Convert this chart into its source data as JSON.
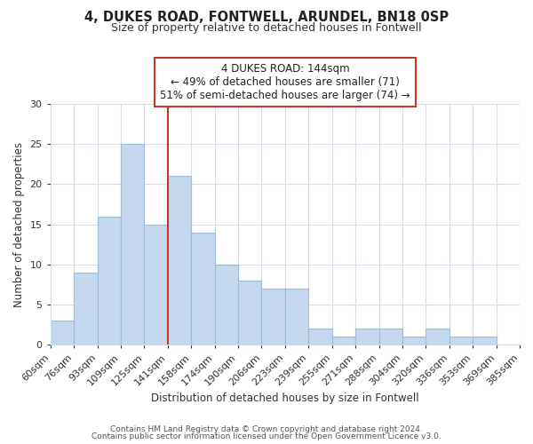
{
  "title": "4, DUKES ROAD, FONTWELL, ARUNDEL, BN18 0SP",
  "subtitle": "Size of property relative to detached houses in Fontwell",
  "xlabel": "Distribution of detached houses by size in Fontwell",
  "ylabel": "Number of detached properties",
  "bar_labels": [
    "60sqm",
    "76sqm",
    "93sqm",
    "109sqm",
    "125sqm",
    "141sqm",
    "158sqm",
    "174sqm",
    "190sqm",
    "206sqm",
    "223sqm",
    "239sqm",
    "255sqm",
    "271sqm",
    "288sqm",
    "304sqm",
    "320sqm",
    "336sqm",
    "353sqm",
    "369sqm",
    "385sqm"
  ],
  "bar_values": [
    3,
    9,
    16,
    25,
    15,
    21,
    14,
    10,
    8,
    7,
    7,
    2,
    1,
    2,
    2,
    1,
    2,
    1,
    1,
    0
  ],
  "bar_color": "#c5d8ed",
  "bar_edge_color": "#a0bcd8",
  "vline_x": 5,
  "vline_color": "#c0392b",
  "annotation_line1": "4 DUKES ROAD: 144sqm",
  "annotation_line2": "← 49% of detached houses are smaller (71)",
  "annotation_line3": "51% of semi-detached houses are larger (74) →",
  "annotation_box_edge": "#c0392b",
  "ylim": [
    0,
    30
  ],
  "yticks": [
    0,
    5,
    10,
    15,
    20,
    25,
    30
  ],
  "footer1": "Contains HM Land Registry data © Crown copyright and database right 2024.",
  "footer2": "Contains public sector information licensed under the Open Government Licence v3.0.",
  "bg_color": "#ffffff",
  "grid_color": "#d4dce8",
  "title_fontsize": 10.5,
  "subtitle_fontsize": 9,
  "axis_label_fontsize": 8.5,
  "tick_fontsize": 8,
  "footer_fontsize": 6.5
}
